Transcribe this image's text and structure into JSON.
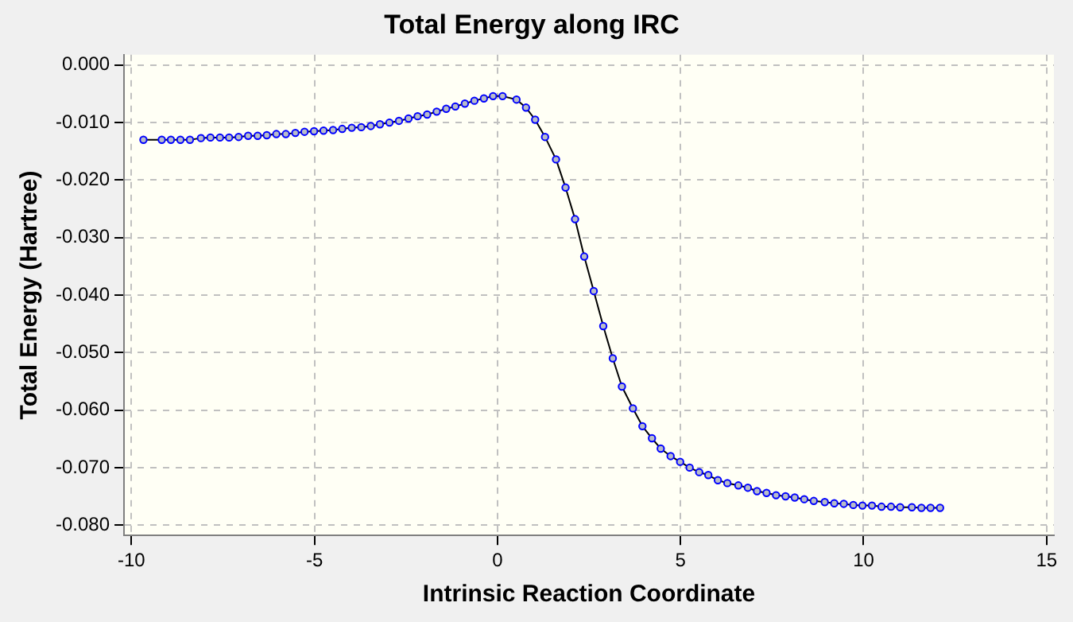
{
  "chart_data": {
    "type": "line",
    "title": "Total Energy along IRC",
    "xlabel": "Intrinsic Reaction Coordinate",
    "ylabel": "Total Energy (Hartree)",
    "x": [
      -9.67,
      -9.17,
      -8.92,
      -8.66,
      -8.4,
      -8.1,
      -7.84,
      -7.58,
      -7.33,
      -7.07,
      -6.81,
      -6.55,
      -6.3,
      -6.04,
      -5.78,
      -5.52,
      -5.27,
      -5.01,
      -4.75,
      -4.49,
      -4.24,
      -3.98,
      -3.72,
      -3.46,
      -3.21,
      -2.95,
      -2.69,
      -2.43,
      -2.18,
      -1.92,
      -1.66,
      -1.4,
      -1.15,
      -0.89,
      -0.63,
      -0.37,
      -0.12,
      0.14,
      0.52,
      0.78,
      1.03,
      1.3,
      1.6,
      1.86,
      2.12,
      2.37,
      2.63,
      2.89,
      3.15,
      3.4,
      3.7,
      3.96,
      4.22,
      4.46,
      4.73,
      4.99,
      5.25,
      5.51,
      5.76,
      6.02,
      6.28,
      6.58,
      6.84,
      7.09,
      7.35,
      7.61,
      7.87,
      8.12,
      8.38,
      8.64,
      8.94,
      9.2,
      9.46,
      9.72,
      9.97,
      10.23,
      10.49,
      10.75,
      11.0,
      11.32,
      11.58,
      11.83,
      12.09
    ],
    "series": [
      {
        "color": "#0000ff",
        "values": [
          -0.013,
          -0.013,
          -0.013,
          -0.013,
          -0.013,
          -0.0127,
          -0.0126,
          -0.0126,
          -0.0126,
          -0.0125,
          -0.0123,
          -0.0123,
          -0.0122,
          -0.012,
          -0.012,
          -0.0118,
          -0.0116,
          -0.0115,
          -0.0114,
          -0.0113,
          -0.0111,
          -0.0109,
          -0.0108,
          -0.0106,
          -0.0103,
          -0.01,
          -0.0097,
          -0.0093,
          -0.0089,
          -0.0086,
          -0.0081,
          -0.0076,
          -0.0072,
          -0.0067,
          -0.0062,
          -0.0058,
          -0.0054,
          -0.0054,
          -0.006,
          -0.0074,
          -0.0095,
          -0.0125,
          -0.0164,
          -0.0213,
          -0.0268,
          -0.0333,
          -0.0393,
          -0.0454,
          -0.051,
          -0.0559,
          -0.0597,
          -0.0628,
          -0.0649,
          -0.0667,
          -0.068,
          -0.069,
          -0.07,
          -0.0708,
          -0.0713,
          -0.0722,
          -0.0727,
          -0.0731,
          -0.0735,
          -0.0741,
          -0.0744,
          -0.0748,
          -0.075,
          -0.0752,
          -0.0755,
          -0.0758,
          -0.076,
          -0.0762,
          -0.0763,
          -0.0765,
          -0.0766,
          -0.0766,
          -0.0768,
          -0.0768,
          -0.0769,
          -0.0769,
          -0.077,
          -0.077,
          -0.077
        ]
      }
    ],
    "xlim": [
      -10.2,
      15.2
    ],
    "xticks": [
      -10,
      -5,
      0,
      5,
      10,
      15
    ],
    "ylim": [
      -0.0818,
      0.0018
    ],
    "yticks": [
      {
        "value": 0,
        "label": "0.000"
      },
      {
        "value": -0.01,
        "label": "-0.010"
      },
      {
        "value": -0.02,
        "label": "-0.020"
      },
      {
        "value": -0.03,
        "label": "-0.030"
      },
      {
        "value": -0.04,
        "label": "-0.040"
      },
      {
        "value": -0.05,
        "label": "-0.050"
      },
      {
        "value": -0.06,
        "label": "-0.060"
      },
      {
        "value": -0.07,
        "label": "-0.070"
      },
      {
        "value": -0.08,
        "label": "-0.080"
      }
    ],
    "grid": true,
    "marker": "circle",
    "line_style": "solid",
    "legend": false
  }
}
